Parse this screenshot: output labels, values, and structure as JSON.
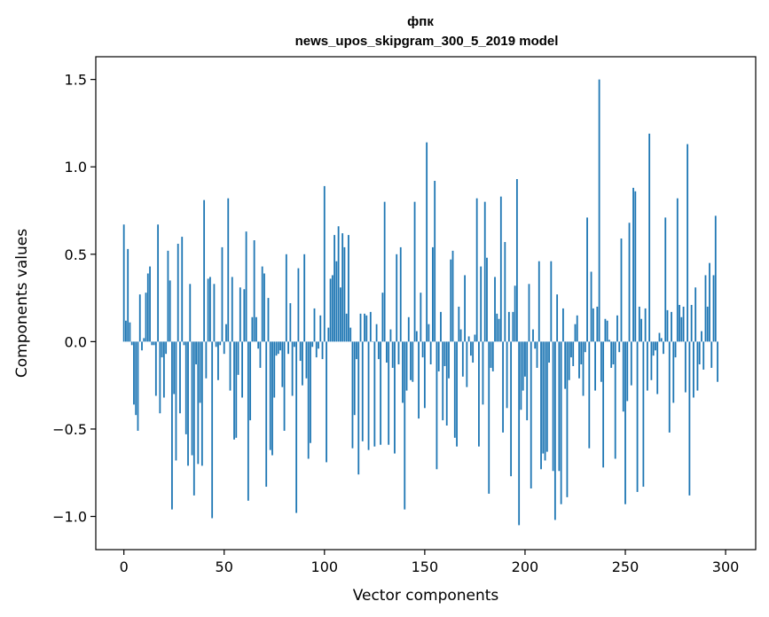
{
  "chart_data": {
    "type": "bar",
    "title": "фпк",
    "subtitle": "news_upos_skipgram_300_5_2019 model",
    "xlabel": "Vector components",
    "ylabel": "Components values",
    "xlim": [
      -14,
      315
    ],
    "ylim": [
      -1.19,
      1.63
    ],
    "xticks": [
      0,
      50,
      100,
      150,
      200,
      250,
      300
    ],
    "xtick_labels": [
      "0",
      "50",
      "100",
      "150",
      "200",
      "250",
      "300"
    ],
    "yticks": [
      -1.0,
      -0.5,
      0.0,
      0.5,
      1.0,
      1.5
    ],
    "ytick_labels": [
      "−1.0",
      "−0.5",
      "0.0",
      "0.5",
      "1.0",
      "1.5"
    ],
    "grid": false,
    "bar_color": "#1f77b4",
    "values": [
      0.67,
      0.12,
      0.53,
      0.11,
      -0.02,
      -0.36,
      -0.42,
      -0.51,
      0.27,
      -0.05,
      0.02,
      0.28,
      0.39,
      0.43,
      -0.02,
      -0.02,
      -0.31,
      0.67,
      -0.41,
      -0.09,
      -0.32,
      -0.07,
      0.52,
      0.35,
      -0.96,
      -0.3,
      -0.68,
      0.56,
      -0.41,
      0.6,
      -0.02,
      -0.53,
      -0.71,
      0.33,
      -0.65,
      -0.88,
      -0.13,
      -0.7,
      -0.35,
      -0.71,
      0.81,
      -0.21,
      0.36,
      0.37,
      -1.01,
      0.33,
      -0.03,
      -0.22,
      -0.02,
      0.54,
      -0.07,
      0.1,
      0.82,
      -0.28,
      0.37,
      -0.56,
      -0.55,
      -0.19,
      0.31,
      -0.32,
      0.3,
      0.63,
      -0.91,
      -0.45,
      0.14,
      0.58,
      0.14,
      -0.04,
      -0.15,
      0.43,
      0.39,
      -0.83,
      0.25,
      -0.62,
      -0.65,
      -0.32,
      -0.08,
      -0.07,
      -0.05,
      -0.26,
      -0.51,
      0.5,
      -0.07,
      0.22,
      -0.31,
      -0.03,
      -0.98,
      0.42,
      -0.11,
      -0.25,
      0.5,
      -0.21,
      -0.67,
      -0.58,
      -0.03,
      0.19,
      -0.09,
      -0.04,
      0.15,
      -0.1,
      0.89,
      -0.69,
      0.08,
      0.36,
      0.38,
      0.61,
      0.46,
      0.66,
      0.31,
      0.62,
      0.54,
      0.16,
      0.61,
      0.08,
      -0.61,
      -0.42,
      -0.1,
      -0.76,
      0.16,
      -0.57,
      0.16,
      0.15,
      -0.62,
      0.17,
      0.0,
      -0.6,
      0.1,
      -0.1,
      -0.59,
      0.28,
      0.8,
      -0.12,
      -0.59,
      0.07,
      -0.15,
      -0.64,
      0.5,
      -0.13,
      0.54,
      -0.35,
      -0.96,
      -0.28,
      0.14,
      -0.22,
      -0.23,
      0.8,
      0.06,
      -0.44,
      0.28,
      -0.09,
      -0.38,
      1.14,
      0.1,
      -0.13,
      0.54,
      0.92,
      -0.73,
      -0.17,
      0.17,
      -0.45,
      -0.14,
      -0.48,
      -0.21,
      0.47,
      0.52,
      -0.55,
      -0.6,
      0.2,
      0.07,
      -0.2,
      0.38,
      -0.26,
      0.03,
      -0.08,
      -0.12,
      0.04,
      0.82,
      -0.6,
      0.43,
      -0.36,
      0.8,
      0.48,
      -0.87,
      -0.15,
      -0.17,
      0.37,
      0.16,
      0.13,
      0.83,
      -0.52,
      0.57,
      -0.38,
      0.17,
      -0.77,
      0.17,
      0.32,
      0.93,
      -1.05,
      -0.39,
      -0.28,
      -0.2,
      -0.45,
      0.33,
      -0.84,
      0.07,
      -0.04,
      -0.15,
      0.46,
      -0.73,
      -0.64,
      -0.68,
      -0.63,
      -0.12,
      0.46,
      -0.74,
      -1.02,
      0.27,
      -0.74,
      -0.93,
      0.19,
      -0.27,
      -0.89,
      -0.22,
      -0.09,
      -0.14,
      0.1,
      0.15,
      -0.21,
      -0.13,
      -0.31,
      -0.06,
      0.71,
      -0.61,
      0.4,
      0.19,
      -0.28,
      0.2,
      1.5,
      -0.23,
      -0.72,
      0.13,
      0.12,
      0.01,
      -0.15,
      -0.13,
      -0.67,
      0.15,
      -0.06,
      0.59,
      -0.4,
      -0.93,
      -0.34,
      0.68,
      -0.25,
      0.88,
      0.86,
      -0.86,
      0.2,
      0.13,
      -0.83,
      0.19,
      -0.28,
      1.19,
      -0.22,
      -0.08,
      -0.05,
      -0.3,
      0.05,
      0.02,
      -0.07,
      0.71,
      0.18,
      -0.52,
      0.17,
      -0.35,
      -0.09,
      0.82,
      0.21,
      0.14,
      0.2,
      -0.29,
      1.13,
      -0.88,
      0.21,
      -0.32,
      0.31,
      -0.28,
      -0.13,
      0.06,
      -0.16,
      0.38,
      0.2,
      0.45,
      -0.15,
      0.38,
      0.72,
      -0.23
    ]
  }
}
